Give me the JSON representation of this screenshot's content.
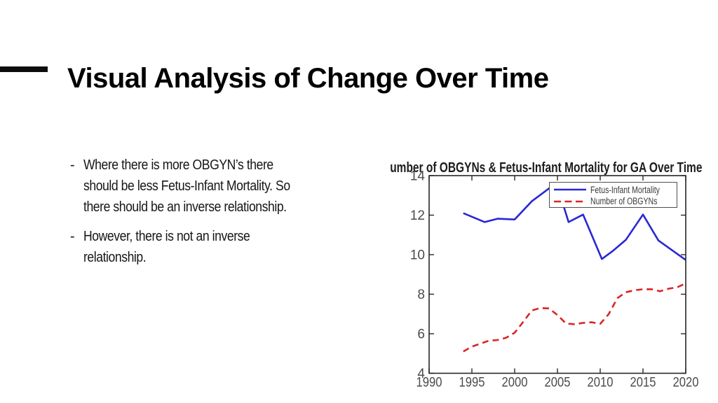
{
  "slide": {
    "title": "Visual Analysis of Change Over Time",
    "bullet_marker": "-",
    "bullets": [
      {
        "lines": [
          "Where there is more OBGYN’s there",
          "should be less Fetus-Infant Mortality. So",
          "there should be an inverse relationship."
        ]
      },
      {
        "lines": [
          "However, there is not an inverse",
          "relationship."
        ]
      }
    ]
  },
  "chart_data": {
    "type": "line",
    "title": "Number of OBGYNs & Fetus-Infant Mortality for GA Over Time",
    "xlabel": "",
    "ylabel": "",
    "xlim": [
      1990,
      2020
    ],
    "ylim": [
      4,
      14
    ],
    "x_ticks": [
      "1990",
      "1995",
      "2000",
      "2005",
      "2010",
      "2015",
      "2020"
    ],
    "y_ticks": [
      "4",
      "6",
      "8",
      "10",
      "12",
      "14"
    ],
    "grid": false,
    "legend_position": "top-right",
    "frame_color": "#262626",
    "tick_label_color": "#4b4b4b",
    "series": [
      {
        "name": "Fetus-Infant Mortality",
        "color": "#2828d4",
        "style": "solid",
        "points": [
          [
            1994,
            12.1
          ],
          [
            1996.5,
            11.65
          ],
          [
            1998,
            11.82
          ],
          [
            2000,
            11.78
          ],
          [
            2002,
            12.7
          ],
          [
            2004,
            13.35
          ],
          [
            2004.9,
            13.6
          ],
          [
            2006.3,
            11.65
          ],
          [
            2008,
            12.03
          ],
          [
            2010.2,
            9.78
          ],
          [
            2011.5,
            10.2
          ],
          [
            2013,
            10.75
          ],
          [
            2015,
            12.03
          ],
          [
            2016.8,
            10.72
          ],
          [
            2020,
            9.73
          ]
        ]
      },
      {
        "name": "Number of OBGYNs",
        "color": "#d92525",
        "style": "dashed",
        "points": [
          [
            1994,
            5.1
          ],
          [
            1995,
            5.35
          ],
          [
            1996,
            5.5
          ],
          [
            1997,
            5.65
          ],
          [
            1998,
            5.68
          ],
          [
            1999,
            5.8
          ],
          [
            2000,
            6.05
          ],
          [
            2001,
            6.6
          ],
          [
            2002,
            7.18
          ],
          [
            2003,
            7.3
          ],
          [
            2004,
            7.28
          ],
          [
            2005,
            6.95
          ],
          [
            2006,
            6.52
          ],
          [
            2007,
            6.48
          ],
          [
            2008,
            6.55
          ],
          [
            2009,
            6.58
          ],
          [
            2010,
            6.5
          ],
          [
            2011,
            7.0
          ],
          [
            2012,
            7.8
          ],
          [
            2013,
            8.1
          ],
          [
            2014,
            8.2
          ],
          [
            2015,
            8.25
          ],
          [
            2016,
            8.25
          ],
          [
            2017,
            8.15
          ],
          [
            2018,
            8.28
          ],
          [
            2019,
            8.35
          ],
          [
            2020,
            8.55
          ]
        ]
      }
    ]
  }
}
